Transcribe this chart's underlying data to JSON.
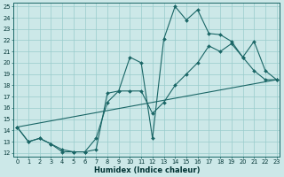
{
  "xlabel": "Humidex (Indice chaleur)",
  "bg_color": "#cce8e8",
  "grid_color": "#99cccc",
  "line_color": "#1a6666",
  "xlim": [
    0,
    23
  ],
  "ylim": [
    12,
    25
  ],
  "xticks": [
    0,
    1,
    2,
    3,
    4,
    5,
    6,
    7,
    8,
    9,
    10,
    11,
    12,
    13,
    14,
    15,
    16,
    17,
    18,
    19,
    20,
    21,
    22,
    23
  ],
  "yticks": [
    12,
    13,
    14,
    15,
    16,
    17,
    18,
    19,
    20,
    21,
    22,
    23,
    24,
    25
  ],
  "line1_x": [
    0,
    1,
    2,
    3,
    4,
    5,
    6,
    7,
    8,
    9,
    10,
    11,
    12,
    13,
    14,
    15,
    16,
    17,
    18,
    19,
    20,
    21,
    22,
    23
  ],
  "line1_y": [
    14.3,
    13.0,
    13.3,
    12.8,
    12.1,
    12.1,
    12.1,
    12.3,
    17.3,
    17.5,
    20.5,
    20.0,
    13.3,
    22.1,
    25.0,
    23.8,
    24.7,
    22.6,
    22.5,
    21.9,
    20.5,
    19.3,
    18.5,
    18.5
  ],
  "line2_x": [
    0,
    1,
    2,
    3,
    4,
    5,
    6,
    7,
    8,
    9,
    10,
    11,
    12,
    13,
    14,
    15,
    16,
    17,
    18,
    19,
    20,
    21,
    22,
    23
  ],
  "line2_y": [
    14.3,
    13.0,
    13.3,
    12.8,
    12.3,
    12.1,
    12.1,
    13.3,
    16.5,
    17.5,
    17.5,
    17.5,
    15.5,
    16.5,
    18.0,
    19.0,
    20.0,
    21.5,
    21.0,
    21.7,
    20.5,
    21.9,
    19.3,
    18.5
  ],
  "line3_x": [
    0,
    23
  ],
  "line3_y": [
    14.3,
    18.5
  ]
}
